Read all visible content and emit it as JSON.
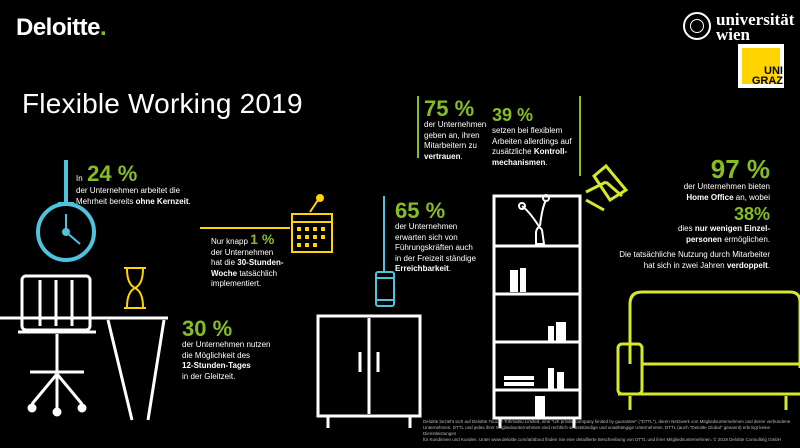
{
  "brand": {
    "name": "Deloitte",
    "dot": ".",
    "accent_color": "#86bc25",
    "accent_blue": "#4fc3dc",
    "accent_yellow": "#d6e82a"
  },
  "title": "Flexible Working 2019",
  "partners": {
    "vienna_line1": "universität",
    "vienna_line2": "wien",
    "graz_line1": "UNI",
    "graz_line2": "GRAZ"
  },
  "stats": {
    "s24": {
      "pct": "24 %",
      "pre": "In",
      "text1": "der Unternehmen arbeitet die",
      "text2": "Mehrheit bereits",
      "bold": "ohne Kernzeit",
      "post": "."
    },
    "s1": {
      "pre": "Nur knapp",
      "pct": "1 %",
      "text1": "der Unternehmen",
      "text2": "hat die",
      "bold1": "30-Stunden-",
      "bold2": "Woche",
      "text3": "tatsächlich",
      "text4": "implementiert."
    },
    "s30": {
      "pct": "30 %",
      "text1": "der Unternehmen nutzen",
      "text2": "die Möglichkeit des",
      "bold1": "12-Stunden-Tages",
      "text3": "in der Gleitzeit."
    },
    "s65": {
      "pct": "65 %",
      "text1": "der Unternehmen",
      "text2": "erwarten sich von",
      "text3": "Führungskräften auch",
      "text4": "in der Freizeit ständige",
      "bold": "Erreichbarkeit",
      "post": "."
    },
    "s75": {
      "pct": "75 %",
      "text1": "der Unternehmen",
      "text2": "geben an, ihren",
      "text3": "Mitarbeitern zu",
      "bold": "vertrauen",
      "post": "."
    },
    "s39": {
      "pct": "39 %",
      "text1": "setzen bei flexiblem",
      "text2": "Arbeiten allerdings auf",
      "text3": "zusätzliche",
      "bold1": "Kontroll-",
      "bold2": "mechanismen",
      "post": "."
    },
    "s97": {
      "pct": "97 %",
      "text1": "der Unternehmen bieten",
      "bold": "Home Office",
      "text2": "an, wobei"
    },
    "s38": {
      "pct": "38%",
      "text1": "dies",
      "bold1": "nur wenigen Einzel-",
      "bold2": "personen",
      "text2": "ermöglichen."
    },
    "double": {
      "text1": "Die tatsächliche Nutzung durch Mitarbeiter",
      "text2": "hat sich in zwei Jahren",
      "bold": "verdoppelt",
      "post": "."
    }
  },
  "footnote": {
    "l1": "Deloitte bezieht sich auf Deloitte Touche Tohmatsu Limited, eine \"UK private company limited by guarantee\" (\"DTTL\"), deren Netzwerk von Mitgliedsunternehmen und deren verbundene",
    "l2": "Unternehmen. DTTL und jedes ihrer Mitgliedsunternehmen sind rechtlich selbstständige und unabhängige Unternehmen. DTTL (auch \"Deloitte Global\" genannt) erbringt keine Dienstleistungen",
    "l3": "für Kundinnen und Kunden. Unter www.deloitte.com/at/about finden Sie eine detaillierte Beschreibung von DTTL und ihrer Mitgliedsunternehmen. © 2019 Deloitte Consulting GmbH"
  }
}
